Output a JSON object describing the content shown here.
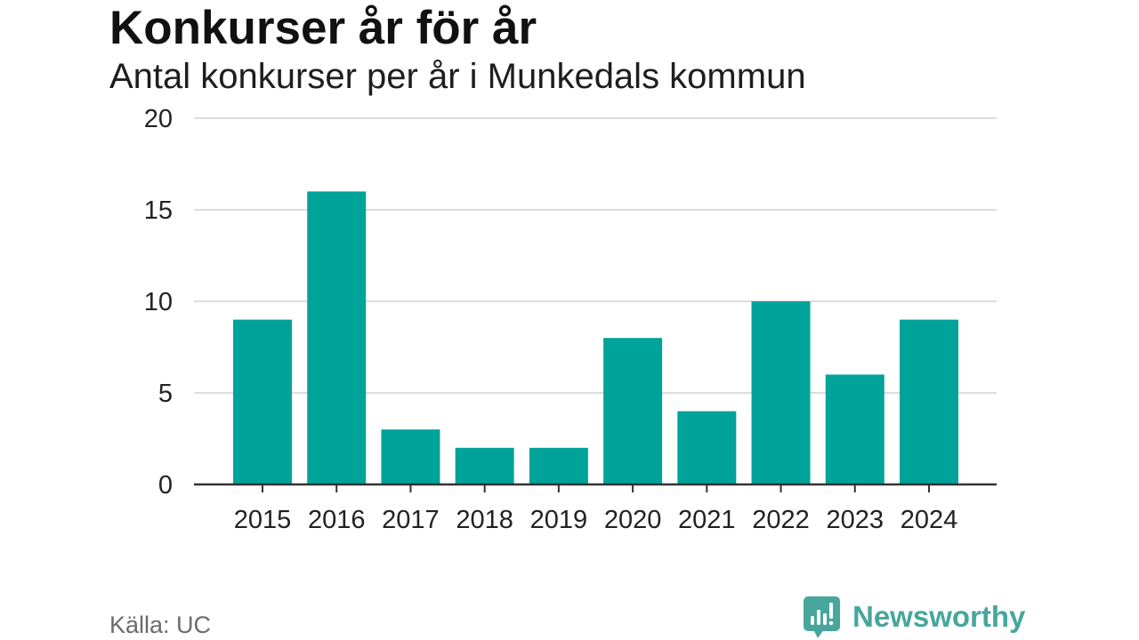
{
  "chart_data": {
    "type": "bar",
    "title": "Konkurser år för år",
    "subtitle": "Antal konkurser per år i Munkedals kommun",
    "categories": [
      "2015",
      "2016",
      "2017",
      "2018",
      "2019",
      "2020",
      "2021",
      "2022",
      "2023",
      "2024"
    ],
    "values": [
      9,
      16,
      3,
      2,
      2,
      8,
      4,
      10,
      6,
      9
    ],
    "ylim": [
      0,
      20
    ],
    "yticks": [
      0,
      5,
      10,
      15,
      20
    ],
    "grid": "horizontal",
    "legend": "none",
    "bar_color": "#00A39A"
  },
  "footer": {
    "source": "Källa: UC"
  },
  "logo": {
    "text": "Newsworthy",
    "icon": "newsworthy-logo-icon",
    "color": "#48A69C"
  },
  "colors": {
    "gridline": "#DDDDDD",
    "axis": "#333333"
  }
}
